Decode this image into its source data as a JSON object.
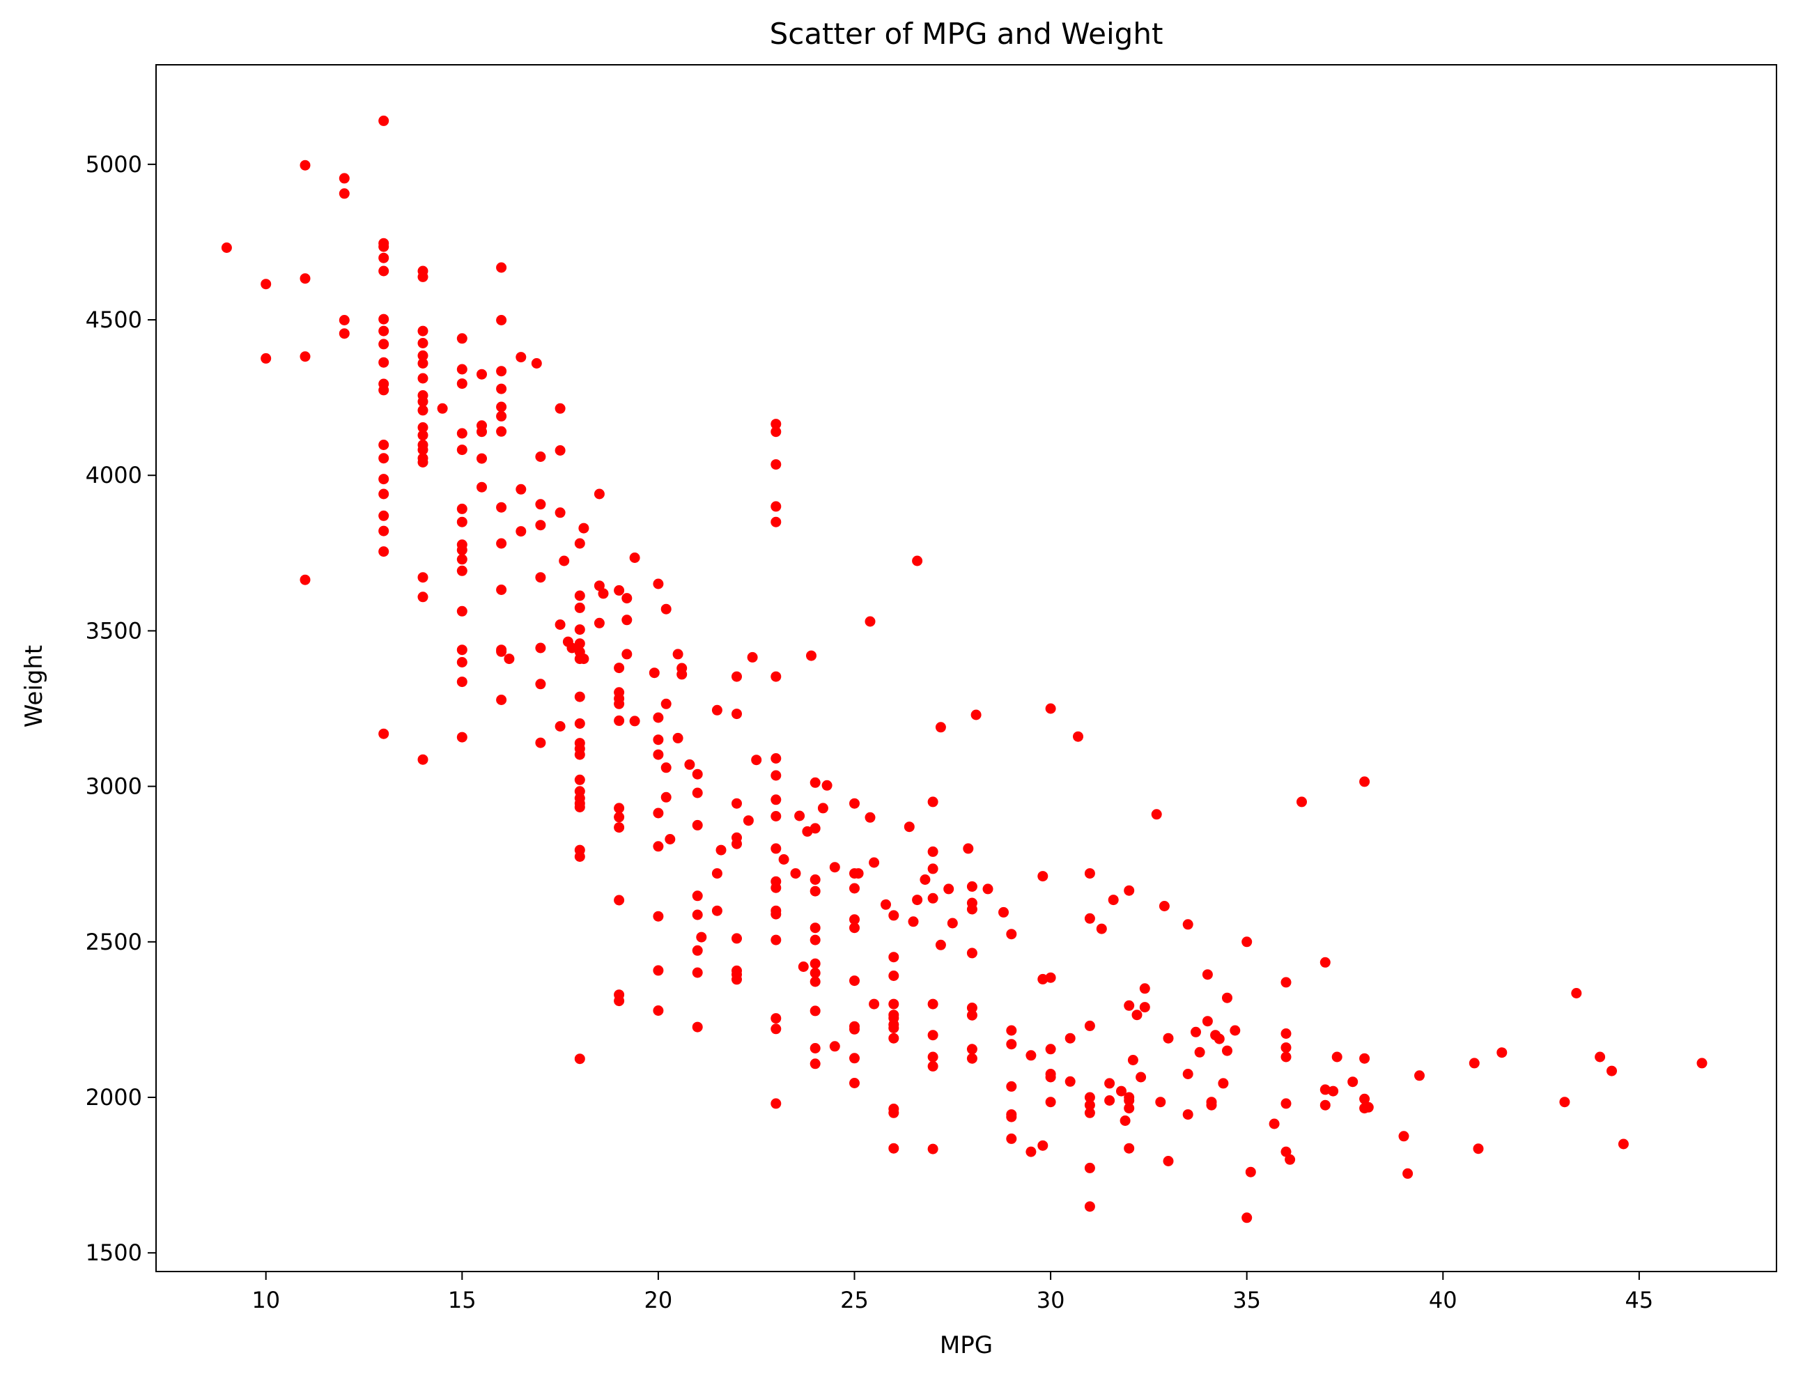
{
  "chart_data": {
    "type": "scatter",
    "title": "Scatter of MPG and Weight",
    "xlabel": "MPG",
    "ylabel": "Weight",
    "xlim": [
      7.2,
      48.5
    ],
    "ylim": [
      1440,
      5320
    ],
    "xticks": [
      10,
      15,
      20,
      25,
      30,
      35,
      40,
      45
    ],
    "yticks": [
      1500,
      2000,
      2500,
      3000,
      3500,
      4000,
      4500,
      5000
    ],
    "grid": false,
    "legend": "none",
    "marker_color": "#ff0000",
    "points": [
      [
        9,
        4732
      ],
      [
        10,
        4615
      ],
      [
        10,
        4376
      ],
      [
        11,
        4997
      ],
      [
        11,
        4633
      ],
      [
        11,
        4382
      ],
      [
        11,
        3664
      ],
      [
        12,
        4955
      ],
      [
        12,
        4906
      ],
      [
        12,
        4499
      ],
      [
        12,
        4456
      ],
      [
        13,
        5140
      ],
      [
        13,
        4746
      ],
      [
        13,
        4735
      ],
      [
        13,
        4699
      ],
      [
        13,
        4657
      ],
      [
        13,
        4502
      ],
      [
        13,
        4464
      ],
      [
        13,
        4422
      ],
      [
        13,
        4363
      ],
      [
        13,
        4294
      ],
      [
        13,
        4274
      ],
      [
        13,
        4098
      ],
      [
        13,
        4055
      ],
      [
        13,
        3988
      ],
      [
        13,
        3940
      ],
      [
        13,
        3870
      ],
      [
        13,
        3821
      ],
      [
        13,
        3755
      ],
      [
        13,
        3169
      ],
      [
        14,
        4657
      ],
      [
        14,
        4638
      ],
      [
        14,
        4464
      ],
      [
        14,
        4425
      ],
      [
        14,
        4385
      ],
      [
        14,
        4360
      ],
      [
        14,
        4312
      ],
      [
        14,
        4257
      ],
      [
        14,
        4237
      ],
      [
        14,
        4209
      ],
      [
        14,
        4154
      ],
      [
        14,
        4129
      ],
      [
        14,
        4098
      ],
      [
        14,
        4082
      ],
      [
        14,
        4055
      ],
      [
        14,
        4042
      ],
      [
        14,
        3672
      ],
      [
        14,
        3609
      ],
      [
        14,
        3086
      ],
      [
        14.5,
        4215
      ],
      [
        15,
        4440
      ],
      [
        15,
        4341
      ],
      [
        15,
        4295
      ],
      [
        15,
        4135
      ],
      [
        15,
        4082
      ],
      [
        15,
        3892
      ],
      [
        15,
        3850
      ],
      [
        15,
        3777
      ],
      [
        15,
        3760
      ],
      [
        15,
        3730
      ],
      [
        15,
        3693
      ],
      [
        15,
        3563
      ],
      [
        15,
        3439
      ],
      [
        15,
        3399
      ],
      [
        15,
        3336
      ],
      [
        15,
        3158
      ],
      [
        15.5,
        4325
      ],
      [
        15.5,
        4160
      ],
      [
        15.5,
        4140
      ],
      [
        15.5,
        4054
      ],
      [
        15.5,
        3962
      ],
      [
        16,
        4668
      ],
      [
        16,
        4499
      ],
      [
        16,
        4335
      ],
      [
        16,
        4278
      ],
      [
        16,
        4220
      ],
      [
        16,
        4190
      ],
      [
        16,
        4141
      ],
      [
        16,
        3897
      ],
      [
        16,
        3781
      ],
      [
        16,
        3632
      ],
      [
        16,
        3439
      ],
      [
        16,
        3433
      ],
      [
        16,
        3278
      ],
      [
        16.2,
        3410
      ],
      [
        16.5,
        4380
      ],
      [
        16.5,
        3955
      ],
      [
        16.5,
        3820
      ],
      [
        16.9,
        4360
      ],
      [
        17,
        4060
      ],
      [
        17,
        3907
      ],
      [
        17,
        3840
      ],
      [
        17,
        3672
      ],
      [
        17,
        3445
      ],
      [
        17,
        3329
      ],
      [
        17,
        3140
      ],
      [
        17.5,
        4215
      ],
      [
        17.5,
        4080
      ],
      [
        17.5,
        3880
      ],
      [
        17.5,
        3520
      ],
      [
        17.5,
        3193
      ],
      [
        17.6,
        3725
      ],
      [
        17.7,
        3465
      ],
      [
        17.8,
        3445
      ],
      [
        18,
        3781
      ],
      [
        18,
        3613
      ],
      [
        18,
        3574
      ],
      [
        18,
        3504
      ],
      [
        18,
        3459
      ],
      [
        18,
        3432
      ],
      [
        18,
        3410
      ],
      [
        18,
        3288
      ],
      [
        18,
        3202
      ],
      [
        18,
        3139
      ],
      [
        18,
        3121
      ],
      [
        18,
        3102
      ],
      [
        18,
        3021
      ],
      [
        18,
        2984
      ],
      [
        18,
        2962
      ],
      [
        18,
        2945
      ],
      [
        18,
        2933
      ],
      [
        18,
        2795
      ],
      [
        18,
        2774
      ],
      [
        18,
        2124
      ],
      [
        18.1,
        3830
      ],
      [
        18.1,
        3410
      ],
      [
        18.5,
        3940
      ],
      [
        18.5,
        3645
      ],
      [
        18.5,
        3525
      ],
      [
        18.6,
        3620
      ],
      [
        19,
        3630
      ],
      [
        19,
        3381
      ],
      [
        19,
        3302
      ],
      [
        19,
        3282
      ],
      [
        19,
        3265
      ],
      [
        19,
        3211
      ],
      [
        19,
        2930
      ],
      [
        19,
        2901
      ],
      [
        19,
        2868
      ],
      [
        19,
        2634
      ],
      [
        19,
        2330
      ],
      [
        19,
        2310
      ],
      [
        19.2,
        3605
      ],
      [
        19.2,
        3535
      ],
      [
        19.2,
        3425
      ],
      [
        19.4,
        3735
      ],
      [
        19.4,
        3210
      ],
      [
        19.9,
        3365
      ],
      [
        20,
        3651
      ],
      [
        20,
        3221
      ],
      [
        20,
        3150
      ],
      [
        20,
        3102
      ],
      [
        20,
        2914
      ],
      [
        20,
        2807
      ],
      [
        20,
        2582
      ],
      [
        20,
        2408
      ],
      [
        20,
        2279
      ],
      [
        20.2,
        3570
      ],
      [
        20.2,
        3265
      ],
      [
        20.2,
        3060
      ],
      [
        20.2,
        2965
      ],
      [
        20.3,
        2830
      ],
      [
        20.5,
        3425
      ],
      [
        20.5,
        3155
      ],
      [
        20.6,
        3380
      ],
      [
        20.6,
        3360
      ],
      [
        20.8,
        3070
      ],
      [
        21,
        3039
      ],
      [
        21,
        2979
      ],
      [
        21,
        2875
      ],
      [
        21,
        2648
      ],
      [
        21,
        2587
      ],
      [
        21,
        2472
      ],
      [
        21,
        2401
      ],
      [
        21,
        2226
      ],
      [
        21.1,
        2515
      ],
      [
        21.5,
        3245
      ],
      [
        21.5,
        2720
      ],
      [
        21.5,
        2600
      ],
      [
        21.6,
        2795
      ],
      [
        22,
        3353
      ],
      [
        22,
        3233
      ],
      [
        22,
        2945
      ],
      [
        22,
        2835
      ],
      [
        22,
        2815
      ],
      [
        22,
        2511
      ],
      [
        22,
        2407
      ],
      [
        22,
        2395
      ],
      [
        22,
        2379
      ],
      [
        22.3,
        2890
      ],
      [
        22.4,
        3415
      ],
      [
        22.5,
        3085
      ],
      [
        23,
        4165
      ],
      [
        23,
        4140
      ],
      [
        23,
        4035
      ],
      [
        23,
        3900
      ],
      [
        23,
        3850
      ],
      [
        23,
        3353
      ],
      [
        23,
        3090
      ],
      [
        23,
        3035
      ],
      [
        23,
        2957
      ],
      [
        23,
        2904
      ],
      [
        23,
        2800
      ],
      [
        23,
        2694
      ],
      [
        23,
        2674
      ],
      [
        23,
        2600
      ],
      [
        23,
        2589
      ],
      [
        23,
        2506
      ],
      [
        23,
        2254
      ],
      [
        23,
        2220
      ],
      [
        23,
        1980
      ],
      [
        23.2,
        2765
      ],
      [
        23.5,
        2720
      ],
      [
        23.6,
        2905
      ],
      [
        23.7,
        2420
      ],
      [
        23.8,
        2855
      ],
      [
        24,
        3012
      ],
      [
        24,
        2865
      ],
      [
        24,
        2700
      ],
      [
        24,
        2663
      ],
      [
        24,
        2545
      ],
      [
        24,
        2506
      ],
      [
        24,
        2430
      ],
      [
        24,
        2400
      ],
      [
        24,
        2372
      ],
      [
        24,
        2278
      ],
      [
        24,
        2158
      ],
      [
        24,
        2108
      ],
      [
        23.9,
        3420
      ],
      [
        24.2,
        2930
      ],
      [
        24.3,
        3003
      ],
      [
        24.5,
        2740
      ],
      [
        24.5,
        2164
      ],
      [
        25,
        2945
      ],
      [
        25,
        2720
      ],
      [
        25,
        2672
      ],
      [
        25,
        2572
      ],
      [
        25,
        2545
      ],
      [
        25,
        2375
      ],
      [
        25,
        2228
      ],
      [
        25,
        2219
      ],
      [
        25,
        2126
      ],
      [
        25,
        2046
      ],
      [
        25.1,
        2720
      ],
      [
        25.4,
        3530
      ],
      [
        25.4,
        2900
      ],
      [
        25.5,
        2755
      ],
      [
        25.5,
        2300
      ],
      [
        25.8,
        2620
      ],
      [
        26,
        2585
      ],
      [
        26,
        2451
      ],
      [
        26,
        2391
      ],
      [
        26,
        2300
      ],
      [
        26,
        2265
      ],
      [
        26,
        2255
      ],
      [
        26,
        2234
      ],
      [
        26,
        2223
      ],
      [
        26,
        2190
      ],
      [
        26,
        1963
      ],
      [
        26,
        1950
      ],
      [
        26,
        1836
      ],
      [
        26.4,
        2870
      ],
      [
        26.5,
        2565
      ],
      [
        26.6,
        3725
      ],
      [
        26.6,
        2635
      ],
      [
        26.8,
        2700
      ],
      [
        27,
        2950
      ],
      [
        27,
        2790
      ],
      [
        27,
        2735
      ],
      [
        27,
        2640
      ],
      [
        27,
        2300
      ],
      [
        27,
        2200
      ],
      [
        27,
        2130
      ],
      [
        27,
        2100
      ],
      [
        27,
        1834
      ],
      [
        27.2,
        3190
      ],
      [
        27.2,
        2490
      ],
      [
        27.4,
        2670
      ],
      [
        27.5,
        2560
      ],
      [
        27.9,
        2800
      ],
      [
        28,
        2678
      ],
      [
        28,
        2625
      ],
      [
        28,
        2605
      ],
      [
        28,
        2464
      ],
      [
        28,
        2288
      ],
      [
        28,
        2264
      ],
      [
        28,
        2155
      ],
      [
        28,
        2125
      ],
      [
        28.1,
        3230
      ],
      [
        28.4,
        2670
      ],
      [
        28.8,
        2595
      ],
      [
        29,
        2525
      ],
      [
        29,
        2215
      ],
      [
        29,
        2171
      ],
      [
        29,
        2035
      ],
      [
        29,
        1945
      ],
      [
        29,
        1937
      ],
      [
        29,
        1867
      ],
      [
        29.5,
        2135
      ],
      [
        29.5,
        1825
      ],
      [
        29.8,
        2711
      ],
      [
        29.8,
        2380
      ],
      [
        29.8,
        1845
      ],
      [
        30,
        3250
      ],
      [
        30,
        2385
      ],
      [
        30,
        2155
      ],
      [
        30,
        2075
      ],
      [
        30,
        2065
      ],
      [
        30,
        1985
      ],
      [
        30.5,
        2190
      ],
      [
        30.5,
        2051
      ],
      [
        30.7,
        3160
      ],
      [
        31,
        2720
      ],
      [
        31,
        2575
      ],
      [
        31,
        2230
      ],
      [
        31,
        2000
      ],
      [
        31,
        1975
      ],
      [
        31,
        1950
      ],
      [
        31,
        1773
      ],
      [
        31,
        1649
      ],
      [
        31.3,
        2542
      ],
      [
        31.5,
        2045
      ],
      [
        31.5,
        1990
      ],
      [
        31.6,
        2635
      ],
      [
        31.8,
        2020
      ],
      [
        31.9,
        1925
      ],
      [
        32,
        2665
      ],
      [
        32,
        2295
      ],
      [
        32,
        2000
      ],
      [
        32,
        1990
      ],
      [
        32,
        1965
      ],
      [
        32,
        1836
      ],
      [
        32.1,
        2120
      ],
      [
        32.2,
        2265
      ],
      [
        32.3,
        2065
      ],
      [
        32.4,
        2350
      ],
      [
        32.4,
        2290
      ],
      [
        32.7,
        2910
      ],
      [
        32.8,
        1985
      ],
      [
        32.9,
        2615
      ],
      [
        33,
        2190
      ],
      [
        33,
        1795
      ],
      [
        33.5,
        2556
      ],
      [
        33.5,
        2075
      ],
      [
        33.5,
        1945
      ],
      [
        33.7,
        2210
      ],
      [
        33.8,
        2145
      ],
      [
        34,
        2395
      ],
      [
        34,
        2245
      ],
      [
        34.1,
        1985
      ],
      [
        34.1,
        1975
      ],
      [
        34.2,
        2200
      ],
      [
        34.3,
        2188
      ],
      [
        34.4,
        2045
      ],
      [
        34.5,
        2320
      ],
      [
        34.5,
        2150
      ],
      [
        34.7,
        2215
      ],
      [
        35,
        2500
      ],
      [
        35,
        1613
      ],
      [
        35.1,
        1760
      ],
      [
        35.7,
        1915
      ],
      [
        36,
        2370
      ],
      [
        36,
        2205
      ],
      [
        36,
        2160
      ],
      [
        36,
        2130
      ],
      [
        36,
        1980
      ],
      [
        36,
        1825
      ],
      [
        36.1,
        1800
      ],
      [
        36.4,
        2950
      ],
      [
        37,
        2434
      ],
      [
        37,
        2025
      ],
      [
        37,
        1975
      ],
      [
        37.2,
        2020
      ],
      [
        37.3,
        2130
      ],
      [
        37.7,
        2050
      ],
      [
        38,
        3015
      ],
      [
        38,
        2125
      ],
      [
        38,
        1995
      ],
      [
        38,
        1965
      ],
      [
        38.1,
        1968
      ],
      [
        39,
        1875
      ],
      [
        39.1,
        1755
      ],
      [
        39.4,
        2070
      ],
      [
        40.8,
        2110
      ],
      [
        40.9,
        1835
      ],
      [
        41.5,
        2144
      ],
      [
        43.1,
        1985
      ],
      [
        43.4,
        2335
      ],
      [
        44,
        2130
      ],
      [
        44.3,
        2085
      ],
      [
        44.6,
        1850
      ],
      [
        46.6,
        2110
      ]
    ]
  }
}
